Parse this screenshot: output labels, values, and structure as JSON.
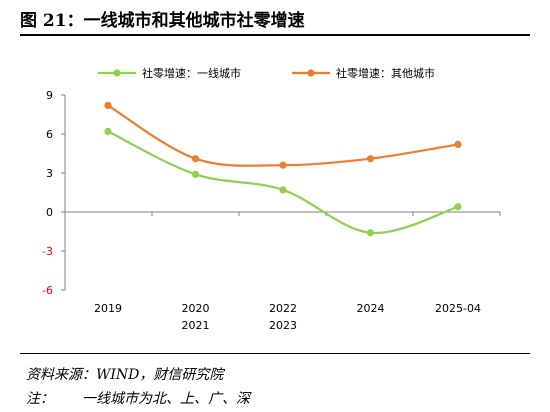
{
  "figure": {
    "title": "图 21：一线城市和其他城市社零增速"
  },
  "notes": {
    "source": "资料来源：WIND，财信研究院",
    "note_label": "注：",
    "note_text": "一线城市为北、上、广、深"
  },
  "chart_data": {
    "type": "line",
    "title": "",
    "xlabel": "",
    "ylabel": "",
    "categories": [
      "2019",
      "2020",
      "2021",
      "2022",
      "2023",
      "2024",
      "2025-04"
    ],
    "tick_labels": [
      {
        "line1": "2019",
        "line2": ""
      },
      {
        "line1": "2020",
        "line2": "2021"
      },
      {
        "line1": "2022",
        "line2": "2023"
      },
      {
        "line1": "2024",
        "line2": ""
      },
      {
        "line1": "2025-04",
        "line2": ""
      }
    ],
    "series": [
      {
        "name": "社零增速：一线城市",
        "color": "#92d050",
        "points": [
          {
            "x": 0,
            "y": 6.2
          },
          {
            "x": 1,
            "y": 2.9
          },
          {
            "x": 2,
            "y": 1.7
          },
          {
            "x": 3,
            "y": -1.6
          },
          {
            "x": 4,
            "y": 0.4
          }
        ]
      },
      {
        "name": "社零增速：其他城市",
        "color": "#ed7d31",
        "points": [
          {
            "x": 0,
            "y": 8.2
          },
          {
            "x": 1,
            "y": 4.1
          },
          {
            "x": 2,
            "y": 3.6
          },
          {
            "x": 3,
            "y": 4.1
          },
          {
            "x": 4,
            "y": 5.2
          }
        ]
      }
    ],
    "ylim": [
      -6,
      9
    ],
    "yticks": [
      -6,
      -3,
      0,
      3,
      6,
      9
    ],
    "grid": false,
    "legend": "top"
  }
}
